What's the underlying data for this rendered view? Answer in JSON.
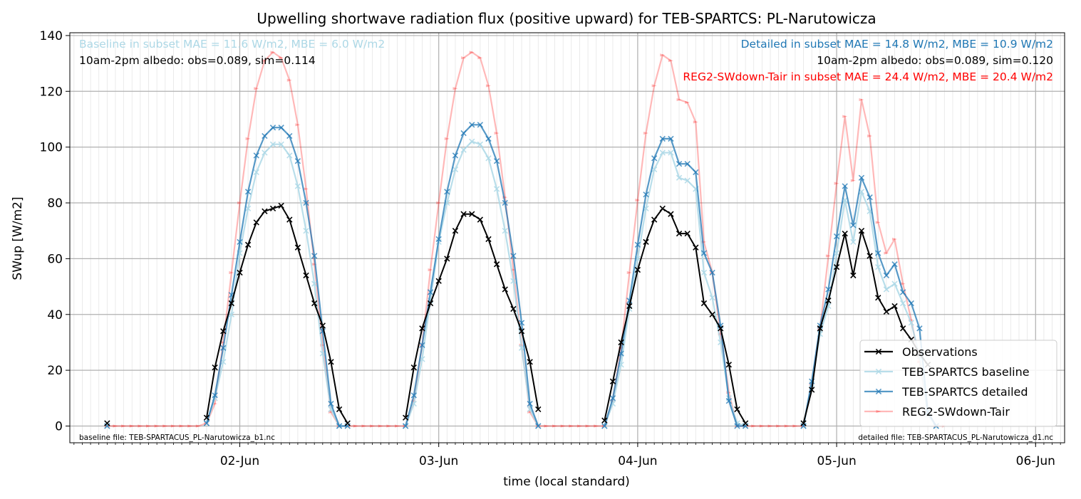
{
  "chart_data": {
    "type": "line",
    "title": "Upwelling shortwave radiation flux (positive upward) for TEB-SPARTCS: PL-Narutowicza",
    "xlabel": "time (local standard)",
    "ylabel": "SWup [W/m2]",
    "x_unit": "hours since 2024-06-01 00:00 local standard",
    "xlim": [
      27.5,
      147.5
    ],
    "ylim": [
      -6,
      141
    ],
    "x_ticks": [
      {
        "value": 48,
        "label": "02-Jun"
      },
      {
        "value": 72,
        "label": "03-Jun"
      },
      {
        "value": 96,
        "label": "04-Jun"
      },
      {
        "value": 120,
        "label": "05-Jun"
      },
      {
        "value": 144,
        "label": "06-Jun"
      }
    ],
    "y_ticks": [
      0,
      20,
      40,
      60,
      80,
      100,
      120,
      140
    ],
    "grid": true,
    "legend_position": "lower-right",
    "series": [
      {
        "name": "Observations",
        "color": "#000000",
        "opacity": 1,
        "marker": "x",
        "points": [
          [
            32,
            1
          ],
          [
            44,
            3
          ],
          [
            45,
            21
          ],
          [
            46,
            34
          ],
          [
            47,
            44
          ],
          [
            48,
            55
          ],
          [
            49,
            65
          ],
          [
            50,
            73
          ],
          [
            51,
            77
          ],
          [
            52,
            78
          ],
          [
            53,
            79
          ],
          [
            54,
            74
          ],
          [
            55,
            64
          ],
          [
            56,
            54
          ],
          [
            57,
            44
          ],
          [
            58,
            36
          ],
          [
            59,
            23
          ],
          [
            60,
            6
          ],
          [
            61,
            1
          ],
          [
            68,
            3
          ],
          [
            69,
            21
          ],
          [
            70,
            35
          ],
          [
            71,
            44
          ],
          [
            72,
            52
          ],
          [
            73,
            60
          ],
          [
            74,
            70
          ],
          [
            75,
            76
          ],
          [
            76,
            76
          ],
          [
            77,
            74
          ],
          [
            78,
            67
          ],
          [
            79,
            58
          ],
          [
            80,
            49
          ],
          [
            81,
            42
          ],
          [
            82,
            34
          ],
          [
            83,
            23
          ],
          [
            84,
            6
          ],
          [
            92,
            2
          ],
          [
            93,
            16
          ],
          [
            94,
            30
          ],
          [
            95,
            43
          ],
          [
            96,
            56
          ],
          [
            97,
            66
          ],
          [
            98,
            74
          ],
          [
            99,
            78
          ],
          [
            100,
            76
          ],
          [
            101,
            69
          ],
          [
            102,
            69
          ],
          [
            103,
            64
          ],
          [
            104,
            44
          ],
          [
            105,
            40
          ],
          [
            106,
            35
          ],
          [
            107,
            22
          ],
          [
            108,
            6
          ],
          [
            109,
            1
          ],
          [
            116,
            1
          ],
          [
            117,
            13
          ],
          [
            118,
            35
          ],
          [
            119,
            45
          ],
          [
            120,
            57
          ],
          [
            121,
            69
          ],
          [
            122,
            54
          ],
          [
            123,
            70
          ],
          [
            124,
            61
          ],
          [
            125,
            46
          ],
          [
            126,
            41
          ],
          [
            127,
            43
          ],
          [
            128,
            35
          ],
          [
            129,
            31
          ],
          [
            130,
            26
          ],
          [
            131,
            22
          ]
        ]
      },
      {
        "name": "TEB-SPARTCS baseline",
        "color": "#add8e6",
        "opacity": 0.85,
        "marker": "x",
        "points": [
          [
            32,
            0
          ],
          [
            44,
            1
          ],
          [
            45,
            10
          ],
          [
            46,
            23
          ],
          [
            47,
            40
          ],
          [
            48,
            62
          ],
          [
            49,
            78
          ],
          [
            50,
            91
          ],
          [
            51,
            98
          ],
          [
            52,
            101
          ],
          [
            53,
            101
          ],
          [
            54,
            97
          ],
          [
            55,
            86
          ],
          [
            56,
            70
          ],
          [
            57,
            51
          ],
          [
            58,
            26
          ],
          [
            59,
            6
          ],
          [
            60,
            0
          ],
          [
            61,
            0
          ],
          [
            68,
            0
          ],
          [
            69,
            8
          ],
          [
            70,
            24
          ],
          [
            71,
            45
          ],
          [
            72,
            66
          ],
          [
            73,
            80
          ],
          [
            74,
            92
          ],
          [
            75,
            99
          ],
          [
            76,
            102
          ],
          [
            77,
            101
          ],
          [
            78,
            96
          ],
          [
            79,
            85
          ],
          [
            80,
            70
          ],
          [
            81,
            52
          ],
          [
            82,
            28
          ],
          [
            83,
            6
          ],
          [
            84,
            0
          ],
          [
            92,
            0
          ],
          [
            93,
            8
          ],
          [
            94,
            22
          ],
          [
            95,
            42
          ],
          [
            96,
            60
          ],
          [
            97,
            78
          ],
          [
            98,
            92
          ],
          [
            99,
            98
          ],
          [
            100,
            98
          ],
          [
            101,
            89
          ],
          [
            102,
            88
          ],
          [
            103,
            85
          ],
          [
            104,
            55
          ],
          [
            105,
            46
          ],
          [
            106,
            30
          ],
          [
            107,
            10
          ],
          [
            108,
            1
          ],
          [
            109,
            0
          ],
          [
            116,
            0
          ],
          [
            117,
            15
          ],
          [
            118,
            33
          ],
          [
            119,
            43
          ],
          [
            120,
            62
          ],
          [
            121,
            81
          ],
          [
            122,
            66
          ],
          [
            123,
            84
          ],
          [
            124,
            77
          ],
          [
            125,
            57
          ],
          [
            126,
            49
          ],
          [
            127,
            51
          ],
          [
            128,
            44
          ],
          [
            129,
            37
          ],
          [
            130,
            25
          ],
          [
            131,
            4
          ],
          [
            132,
            0
          ]
        ]
      },
      {
        "name": "TEB-SPARTCS detailed",
        "color": "#1f77b4",
        "opacity": 0.75,
        "marker": "x",
        "points": [
          [
            32,
            0
          ],
          [
            44,
            1
          ],
          [
            45,
            11
          ],
          [
            46,
            28
          ],
          [
            47,
            47
          ],
          [
            48,
            66
          ],
          [
            49,
            84
          ],
          [
            50,
            97
          ],
          [
            51,
            104
          ],
          [
            52,
            107
          ],
          [
            53,
            107
          ],
          [
            54,
            104
          ],
          [
            55,
            95
          ],
          [
            56,
            80
          ],
          [
            57,
            61
          ],
          [
            58,
            34
          ],
          [
            59,
            8
          ],
          [
            60,
            0
          ],
          [
            61,
            0
          ],
          [
            68,
            0
          ],
          [
            69,
            11
          ],
          [
            70,
            29
          ],
          [
            71,
            48
          ],
          [
            72,
            67
          ],
          [
            73,
            84
          ],
          [
            74,
            97
          ],
          [
            75,
            105
          ],
          [
            76,
            108
          ],
          [
            77,
            108
          ],
          [
            78,
            103
          ],
          [
            79,
            95
          ],
          [
            80,
            80
          ],
          [
            81,
            61
          ],
          [
            82,
            37
          ],
          [
            83,
            8
          ],
          [
            84,
            0
          ],
          [
            92,
            0
          ],
          [
            93,
            10
          ],
          [
            94,
            26
          ],
          [
            95,
            45
          ],
          [
            96,
            65
          ],
          [
            97,
            83
          ],
          [
            98,
            96
          ],
          [
            99,
            103
          ],
          [
            100,
            103
          ],
          [
            101,
            94
          ],
          [
            102,
            94
          ],
          [
            103,
            91
          ],
          [
            104,
            62
          ],
          [
            105,
            55
          ],
          [
            106,
            36
          ],
          [
            107,
            9
          ],
          [
            108,
            0
          ],
          [
            109,
            0
          ],
          [
            116,
            0
          ],
          [
            117,
            16
          ],
          [
            118,
            36
          ],
          [
            119,
            49
          ],
          [
            120,
            68
          ],
          [
            121,
            86
          ],
          [
            122,
            72
          ],
          [
            123,
            89
          ],
          [
            124,
            82
          ],
          [
            125,
            62
          ],
          [
            126,
            54
          ],
          [
            127,
            58
          ],
          [
            128,
            48
          ],
          [
            129,
            44
          ],
          [
            130,
            35
          ],
          [
            131,
            5
          ],
          [
            132,
            0
          ]
        ]
      },
      {
        "name": "REG2-SWdown-Tair",
        "color": "#ff0000",
        "opacity": 0.28,
        "marker": "tri",
        "points": [
          [
            32,
            0
          ],
          [
            33,
            0
          ],
          [
            34,
            0
          ],
          [
            35,
            0
          ],
          [
            36,
            0
          ],
          [
            37,
            0
          ],
          [
            38,
            0
          ],
          [
            39,
            0
          ],
          [
            40,
            0
          ],
          [
            41,
            0
          ],
          [
            42,
            0
          ],
          [
            43,
            0
          ],
          [
            44,
            1
          ],
          [
            45,
            8
          ],
          [
            46,
            30
          ],
          [
            47,
            55
          ],
          [
            48,
            80
          ],
          [
            49,
            103
          ],
          [
            50,
            121
          ],
          [
            51,
            131
          ],
          [
            52,
            134
          ],
          [
            53,
            132
          ],
          [
            54,
            124
          ],
          [
            55,
            108
          ],
          [
            56,
            85
          ],
          [
            57,
            58
          ],
          [
            58,
            29
          ],
          [
            59,
            5
          ],
          [
            60,
            0
          ],
          [
            61,
            0
          ],
          [
            62,
            0
          ],
          [
            63,
            0
          ],
          [
            64,
            0
          ],
          [
            65,
            0
          ],
          [
            66,
            0
          ],
          [
            67,
            0
          ],
          [
            68,
            0
          ],
          [
            69,
            9
          ],
          [
            70,
            29
          ],
          [
            71,
            56
          ],
          [
            72,
            80
          ],
          [
            73,
            103
          ],
          [
            74,
            121
          ],
          [
            75,
            132
          ],
          [
            76,
            134
          ],
          [
            77,
            132
          ],
          [
            78,
            122
          ],
          [
            79,
            105
          ],
          [
            80,
            82
          ],
          [
            81,
            56
          ],
          [
            82,
            29
          ],
          [
            83,
            5
          ],
          [
            84,
            0
          ],
          [
            85,
            0
          ],
          [
            86,
            0
          ],
          [
            87,
            0
          ],
          [
            88,
            0
          ],
          [
            89,
            0
          ],
          [
            90,
            0
          ],
          [
            91,
            0
          ],
          [
            92,
            0
          ],
          [
            93,
            9
          ],
          [
            94,
            28
          ],
          [
            95,
            55
          ],
          [
            96,
            81
          ],
          [
            97,
            105
          ],
          [
            98,
            122
          ],
          [
            99,
            133
          ],
          [
            100,
            131
          ],
          [
            101,
            117
          ],
          [
            102,
            116
          ],
          [
            103,
            109
          ],
          [
            104,
            66
          ],
          [
            105,
            55
          ],
          [
            106,
            33
          ],
          [
            107,
            12
          ],
          [
            108,
            0
          ],
          [
            109,
            0
          ],
          [
            110,
            0
          ],
          [
            111,
            0
          ],
          [
            112,
            0
          ],
          [
            113,
            0
          ],
          [
            114,
            0
          ],
          [
            115,
            0
          ],
          [
            116,
            0
          ],
          [
            117,
            15
          ],
          [
            118,
            35
          ],
          [
            119,
            61
          ],
          [
            120,
            87
          ],
          [
            121,
            111
          ],
          [
            122,
            88
          ],
          [
            123,
            117
          ],
          [
            124,
            104
          ],
          [
            125,
            73
          ],
          [
            126,
            62
          ],
          [
            127,
            67
          ],
          [
            128,
            51
          ],
          [
            129,
            38
          ],
          [
            130,
            23
          ],
          [
            131,
            5
          ],
          [
            132,
            0
          ],
          [
            133,
            0
          ]
        ]
      }
    ],
    "annotations": {
      "top_left": [
        {
          "text": "Baseline in subset MAE = 11.6 W/m2, MBE = 6.0 W/m2",
          "color": "#add8e6"
        },
        {
          "text": "10am-2pm albedo: obs=0.089, sim=0.114",
          "color": "#000000"
        }
      ],
      "top_right": [
        {
          "text": "Detailed in subset MAE = 14.8 W/m2, MBE = 10.9 W/m2",
          "color": "#1f77b4"
        },
        {
          "text": "10am-2pm albedo: obs=0.089, sim=0.120",
          "color": "#000000"
        },
        {
          "text": "REG2-SWdown-Tair in subset MAE = 24.4 W/m2, MBE = 20.4 W/m2",
          "color": "#ff0000"
        }
      ],
      "bottom_left": "baseline file: TEB-SPARTACUS_PL-Narutowicza_b1.nc",
      "bottom_right": "detailed file: TEB-SPARTACUS_PL-Narutowicza_d1.nc"
    }
  }
}
